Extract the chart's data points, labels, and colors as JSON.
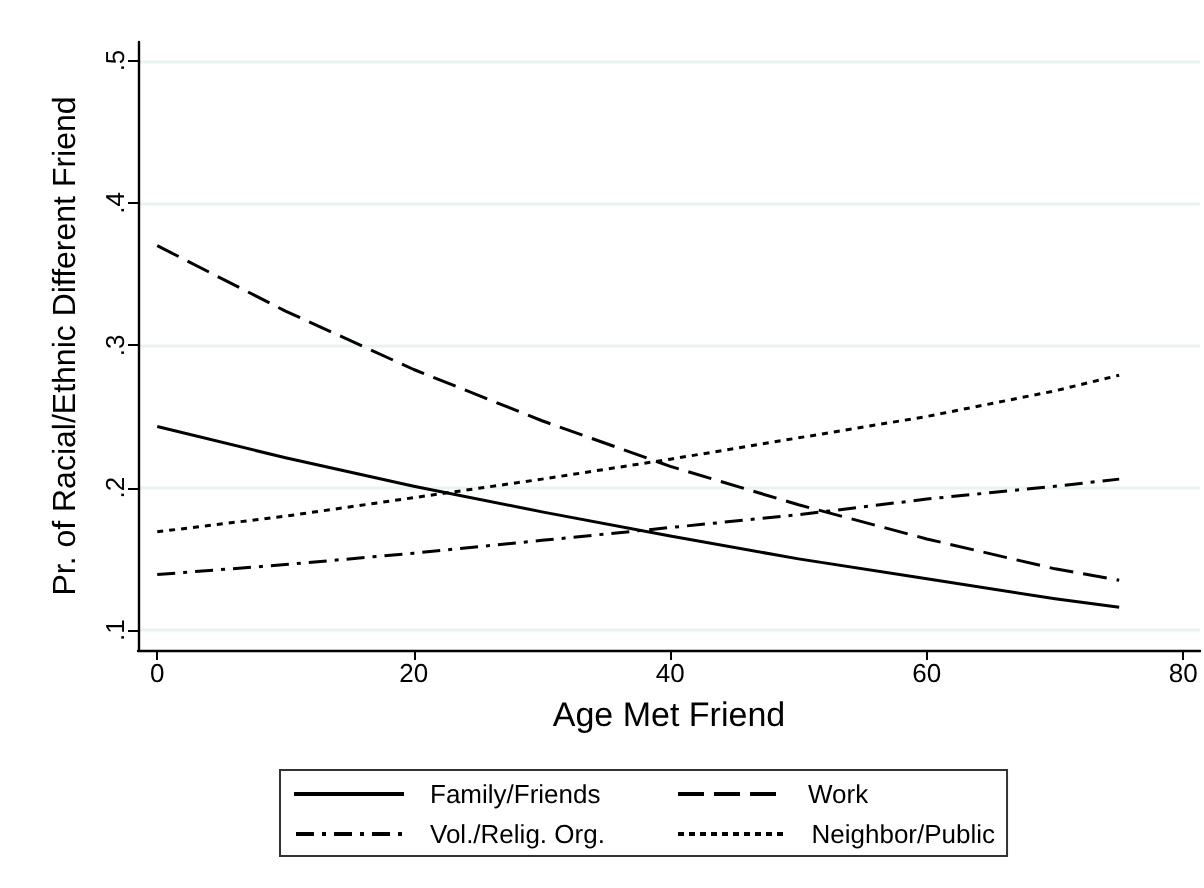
{
  "chart_data": {
    "type": "line",
    "xlabel": "Age Met Friend",
    "ylabel": "Pr. of Racial/Ethnic Different Friend",
    "x": [
      0,
      10,
      20,
      30,
      40,
      50,
      60,
      70,
      75
    ],
    "series": [
      {
        "name": "Family/Friends",
        "color": "#000000",
        "line_style": "solid",
        "values": [
          0.243,
          0.221,
          0.201,
          0.183,
          0.166,
          0.15,
          0.136,
          0.122,
          0.116
        ]
      },
      {
        "name": "Work",
        "color": "#000000",
        "line_style": "dashed",
        "values": [
          0.37,
          0.324,
          0.283,
          0.247,
          0.215,
          0.188,
          0.164,
          0.143,
          0.135
        ]
      },
      {
        "name": "Vol./Relig. Org.",
        "color": "#000000",
        "line_style": "dashdot",
        "values": [
          0.139,
          0.146,
          0.154,
          0.163,
          0.172,
          0.181,
          0.192,
          0.201,
          0.206
        ]
      },
      {
        "name": "Neighbor/Public",
        "color": "#000000",
        "line_style": "dotted",
        "values": [
          0.169,
          0.18,
          0.193,
          0.206,
          0.22,
          0.235,
          0.25,
          0.268,
          0.279
        ]
      }
    ],
    "xlim": [
      -1.5,
      81.3
    ],
    "xticks": [
      0,
      20,
      40,
      60,
      80
    ],
    "ylim": [
      0.086,
      0.513
    ],
    "yticks": [
      {
        "value": 0.1,
        "label": ".1"
      },
      {
        "value": 0.2,
        "label": ".2"
      },
      {
        "value": 0.3,
        "label": ".3"
      },
      {
        "value": 0.4,
        "label": ".4"
      },
      {
        "value": 0.5,
        "label": ".5"
      }
    ],
    "grid": "y",
    "legend": "bottom",
    "marker": "none"
  }
}
